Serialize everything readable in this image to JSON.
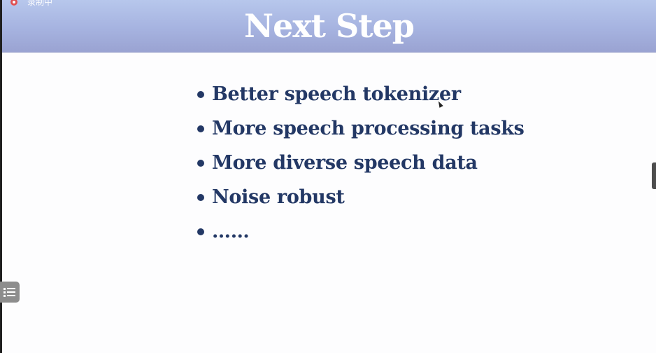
{
  "recording": {
    "label": "录制中",
    "icon": "recording-icon"
  },
  "slide": {
    "title": "Next Step",
    "bullets": [
      "Better speech tokenizer",
      "More speech processing tasks",
      "More diverse speech data",
      "Noise robust",
      "……"
    ]
  },
  "controls": {
    "outline_icon": "list-icon",
    "side_handle_icon": "panel-handle-icon"
  },
  "colors": {
    "header_top": "#b7c7ec",
    "header_bottom": "#9aa3d2",
    "title": "#ffffff",
    "bullet_text": "#233865"
  }
}
